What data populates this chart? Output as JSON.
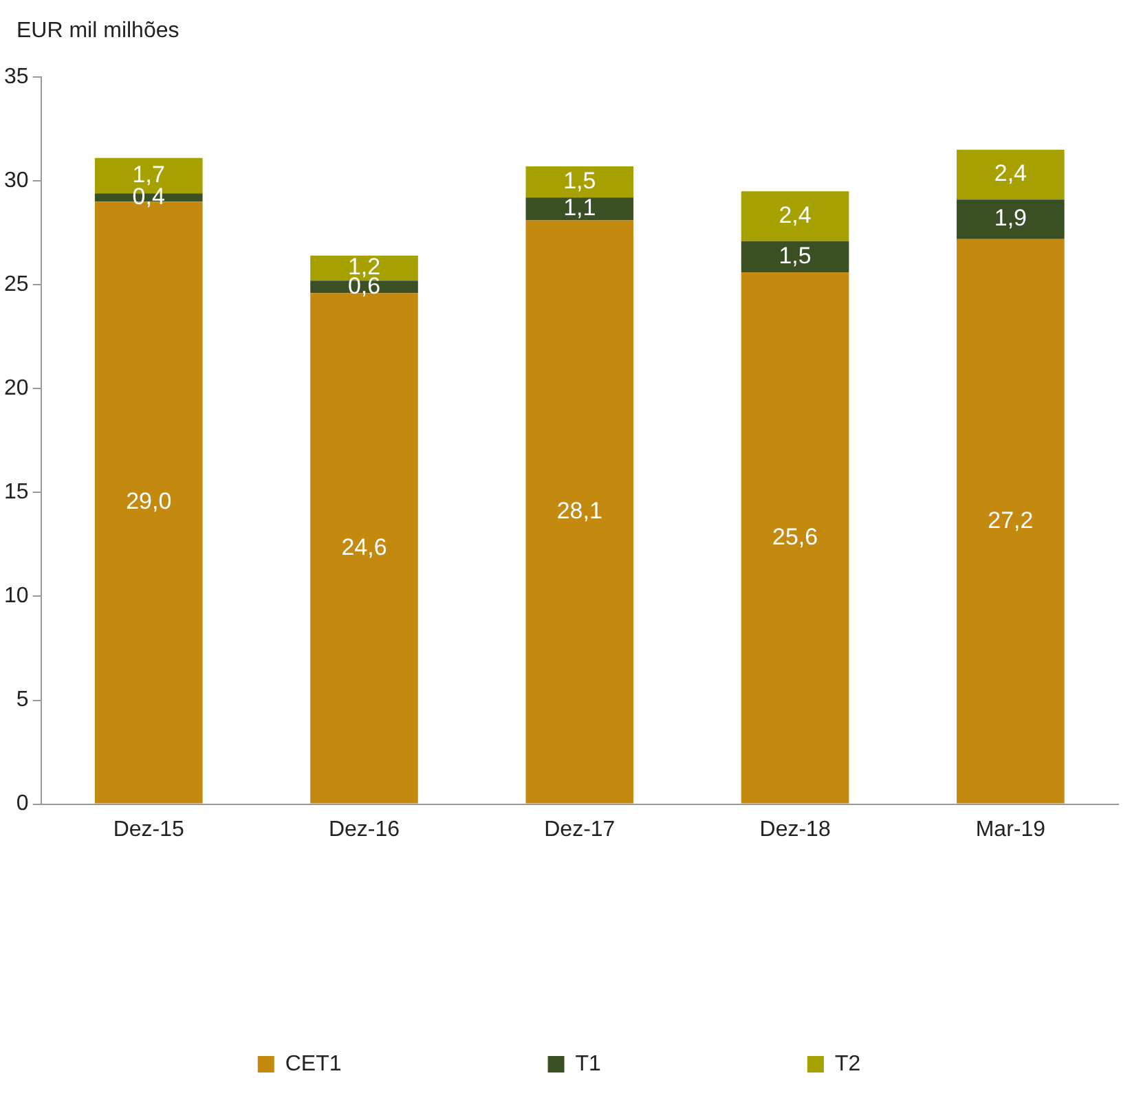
{
  "chart_data": {
    "type": "bar",
    "stacked": true,
    "ylabel": "EUR mil milhões",
    "categories": [
      "Dez-15",
      "Dez-16",
      "Dez-17",
      "Dez-18",
      "Mar-19"
    ],
    "series": [
      {
        "name": "CET1",
        "color": "#c48a10",
        "values": [
          29.0,
          24.6,
          28.1,
          25.6,
          27.2
        ],
        "value_labels": [
          "29,0",
          "24,6",
          "28,1",
          "25,6",
          "27,2"
        ]
      },
      {
        "name": "T1",
        "color": "#3a4f24",
        "values": [
          0.4,
          0.6,
          1.1,
          1.5,
          1.9
        ],
        "value_labels": [
          "0,4",
          "0,6",
          "1,1",
          "1,5",
          "1,9"
        ]
      },
      {
        "name": "T2",
        "color": "#a6a000",
        "values": [
          1.7,
          1.2,
          1.5,
          2.4,
          2.4
        ],
        "value_labels": [
          "1,7",
          "1,2",
          "1,5",
          "2,4",
          "2,4"
        ]
      }
    ],
    "ylim": [
      0,
      35
    ],
    "yticks": [
      0,
      5,
      10,
      15,
      20,
      25,
      30,
      35
    ],
    "grid": false,
    "legend": "bottom"
  }
}
